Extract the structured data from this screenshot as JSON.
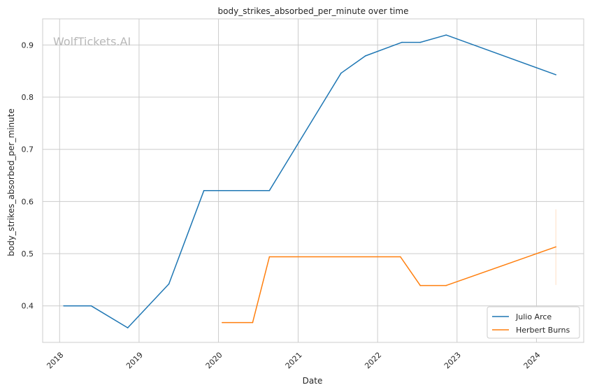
{
  "watermark": "WolfTickets.AI",
  "chart_data": {
    "type": "line",
    "title": "body_strikes_absorbed_per_minute over time",
    "xlabel": "Date",
    "ylabel": "body_strikes_absorbed_per_minute",
    "x_ticks": [
      "2018",
      "2019",
      "2020",
      "2021",
      "2022",
      "2023",
      "2024"
    ],
    "y_ticks": [
      "0.4",
      "0.5",
      "0.6",
      "0.7",
      "0.8",
      "0.9"
    ],
    "xlim": [
      "2017-10-15",
      "2024-08-05"
    ],
    "ylim": [
      0.33,
      0.95
    ],
    "grid": true,
    "legend_position": "bottom-right",
    "series": [
      {
        "name": "Julio Arce",
        "color": "#1f77b4",
        "points": [
          {
            "x": "2018-01-20",
            "y": 0.4
          },
          {
            "x": "2018-05-26",
            "y": 0.4
          },
          {
            "x": "2018-11-10",
            "y": 0.358
          },
          {
            "x": "2019-05-18",
            "y": 0.442
          },
          {
            "x": "2019-10-26",
            "y": 0.621
          },
          {
            "x": "2020-08-22",
            "y": 0.621
          },
          {
            "x": "2021-07-17",
            "y": 0.846
          },
          {
            "x": "2021-11-06",
            "y": 0.879
          },
          {
            "x": "2022-04-23",
            "y": 0.905
          },
          {
            "x": "2022-07-16",
            "y": 0.905
          },
          {
            "x": "2022-11-12",
            "y": 0.919
          },
          {
            "x": "2024-03-30",
            "y": 0.843
          }
        ]
      },
      {
        "name": "Herbert Burns",
        "color": "#ff7f0e",
        "points": [
          {
            "x": "2020-01-18",
            "y": 0.368
          },
          {
            "x": "2020-06-06",
            "y": 0.368
          },
          {
            "x": "2020-08-22",
            "y": 0.494
          },
          {
            "x": "2022-04-16",
            "y": 0.494
          },
          {
            "x": "2022-07-16",
            "y": 0.439
          },
          {
            "x": "2022-11-12",
            "y": 0.439
          },
          {
            "x": "2024-03-30",
            "y": 0.513
          }
        ],
        "error_bar": {
          "x": "2024-03-30",
          "low": 0.44,
          "high": 0.585
        }
      }
    ]
  }
}
